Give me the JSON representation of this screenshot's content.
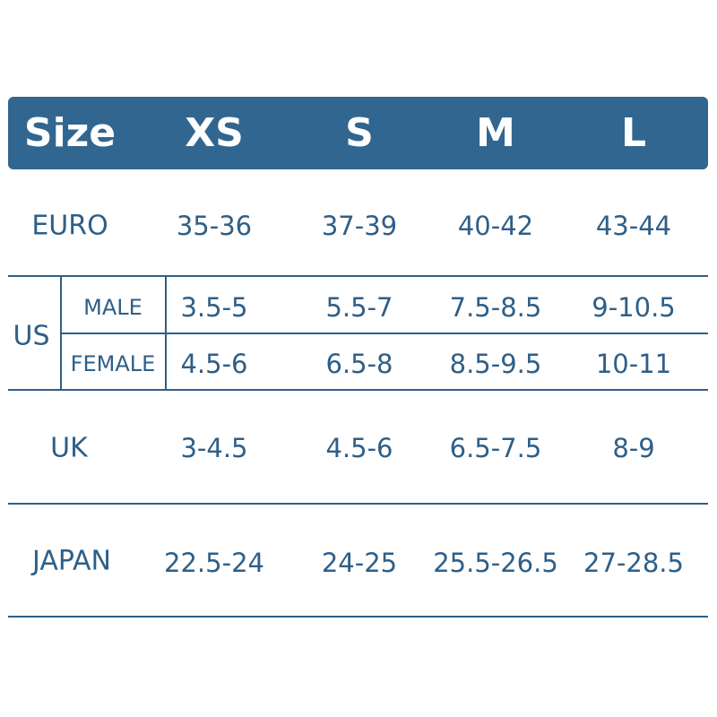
{
  "header": {
    "label": "Size",
    "sizes": [
      "XS",
      "S",
      "M",
      "L"
    ]
  },
  "colors": {
    "header_bg": "#316690",
    "text": "#2e5f88",
    "header_text": "#ffffff"
  },
  "rows": {
    "euro": {
      "label": "EURO",
      "values": [
        "35-36",
        "37-39",
        "40-42",
        "43-44"
      ]
    },
    "us": {
      "label": "US",
      "male": {
        "label": "MALE",
        "values": [
          "3.5-5",
          "5.5-7",
          "7.5-8.5",
          "9-10.5"
        ]
      },
      "female": {
        "label": "FEMALE",
        "values": [
          "4.5-6",
          "6.5-8",
          "8.5-9.5",
          "10-11"
        ]
      }
    },
    "uk": {
      "label": "UK",
      "values": [
        "3-4.5",
        "4.5-6",
        "6.5-7.5",
        "8-9"
      ]
    },
    "japan": {
      "label": "JAPAN",
      "values": [
        "22.5-24",
        "24-25",
        "25.5-26.5",
        "27-28.5"
      ]
    }
  }
}
